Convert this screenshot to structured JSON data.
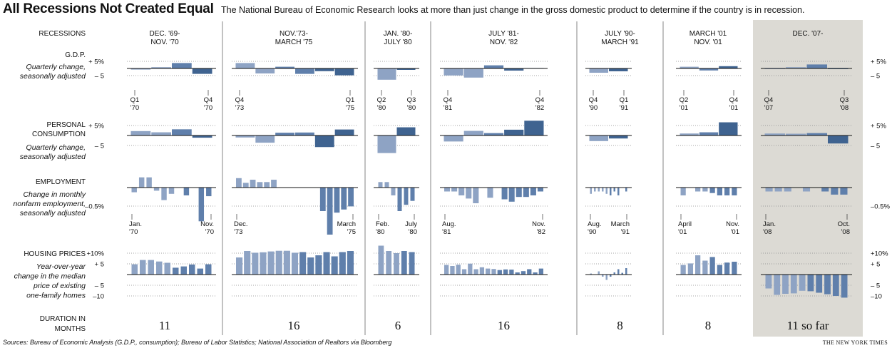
{
  "header": {
    "title": "All Recessions Not Created Equal",
    "subtitle": "The National Bureau of Economic Research looks at more than just change in the gross domestic product to determine if the country is in recession."
  },
  "row_labels": {
    "recessions": "RECESSIONS",
    "gdp_title": "G.D.P.",
    "gdp_desc": "Quarterly change, seasonally adjusted",
    "pc_title": "PERSONAL CONSUMPTION",
    "pc_desc": "Quarterly change, seasonally adjusted",
    "emp_title": "EMPLOYMENT",
    "emp_desc": "Change in monthly nonfarm employment, seasonally adjusted",
    "house_title": "HOUSING PRICES",
    "house_desc": "Year-over-year change in the median price of existing one-family homes",
    "dur_title": "DURATION IN MONTHS"
  },
  "footer": {
    "sources": "Sources: Bureau of Economic Analysis (G.D.P., consumption); Bureau of Labor Statistics; National Association of Realtors via Bloomberg",
    "credit": "THE NEW YORK TIMES"
  },
  "colors": {
    "light": "#8ea3c4",
    "mid": "#5f7fab",
    "dark": "#3f6390",
    "highlight_bg": "#dcdad4",
    "divider": "#666666"
  },
  "chart_data": [
    {
      "type": "bar",
      "name": "G.D.P.",
      "ylim": [
        -5,
        5
      ],
      "ytick_labels": {
        "left": [
          "+ 5%",
          "– 5"
        ],
        "right": [
          "+ 5%",
          "– 5"
        ]
      },
      "recessions": [
        {
          "label": "DEC. '69-\nNOV. '70",
          "duration": "11",
          "values": [
            -0.8,
            0.9,
            3.8,
            -3.8
          ],
          "start_label": "Q1\n'70",
          "end_label": "Q4\n'70"
        },
        {
          "label": "NOV.'73-\nMARCH '75",
          "duration": "16",
          "values": [
            3.8,
            -3.5,
            1.2,
            -3.8,
            -1.9,
            -4.8
          ],
          "start_label": "Q4\n'73",
          "end_label": "Q1\n'75"
        },
        {
          "label": "JAN. '80-\nJULY '80",
          "duration": "6",
          "values": [
            -7.9,
            -1.0
          ],
          "start_label": "Q2\n'80",
          "end_label": "Q3\n'80"
        },
        {
          "label": "JULY '81-\nNOV. '82",
          "duration": "16",
          "values": [
            -4.9,
            -6.4,
            2.2,
            -1.5,
            0.3
          ],
          "start_label": "Q4\n'81",
          "end_label": "Q4\n'82"
        },
        {
          "label": "JULY '90-\nMARCH '91",
          "duration": "8",
          "values": [
            -3.0,
            -2.0
          ],
          "start_label": "Q4\n'90",
          "end_label": "Q1\n'91"
        },
        {
          "label": "MARCH '01\nNOV. '01",
          "duration": "8",
          "values": [
            1.2,
            -1.4,
            1.6
          ],
          "start_label": "Q2\n'01",
          "end_label": "Q4\n'01"
        },
        {
          "label": "DEC. '07-",
          "duration": "11 so far",
          "values": [
            -0.2,
            0.9,
            2.8,
            -0.5
          ],
          "start_label": "Q4\n'07",
          "end_label": "Q3\n'08"
        }
      ]
    },
    {
      "type": "bar",
      "name": "PERSONAL CONSUMPTION",
      "ylim": [
        -5,
        5
      ],
      "ytick_labels": {
        "left": [
          "+ 5%",
          "– 5"
        ],
        "right": [
          "+ 5%",
          "– 5"
        ]
      },
      "recessions": [
        {
          "values": [
            2.2,
            1.6,
            3.1,
            -1.1
          ]
        },
        {
          "values": [
            -1.0,
            -3.6,
            1.4,
            1.5,
            -5.8,
            3.0
          ]
        },
        {
          "values": [
            -8.8,
            4.1
          ]
        },
        {
          "values": [
            -3.0,
            2.3,
            1.2,
            2.9,
            7.4
          ]
        },
        {
          "values": [
            -2.8,
            -1.5
          ]
        },
        {
          "values": [
            1.0,
            1.6,
            6.6
          ]
        },
        {
          "values": [
            1.0,
            0.9,
            1.2,
            -4.0
          ]
        }
      ]
    },
    {
      "type": "bar",
      "name": "EMPLOYMENT",
      "ylim": [
        -0.5,
        0.3
      ],
      "ytick_labels": {
        "right": [
          "–0.5%"
        ],
        "left": [
          "–0.5%"
        ]
      },
      "recessions": [
        {
          "values": [
            -0.06,
            0.13,
            0.13,
            -0.04,
            -0.16,
            -0.08,
            0,
            -0.1,
            0,
            -0.43,
            -0.11
          ],
          "start_label": "Jan.\n'70",
          "end_label": "Nov.\n'70"
        },
        {
          "values": [
            0.12,
            0.06,
            0.1,
            0.07,
            0.07,
            0.1,
            0,
            0,
            0,
            0,
            0,
            0,
            -0.3,
            -0.6,
            -0.32,
            -0.28,
            -0.24
          ],
          "start_label": "Dec.\n'73",
          "end_label": "March\n'75"
        },
        {
          "values": [
            0.07,
            0.07,
            -0.1,
            -0.3,
            -0.22,
            -0.17
          ],
          "start_label": "Feb.\n'80",
          "end_label": "July\n'80"
        },
        {
          "values": [
            -0.05,
            -0.05,
            -0.1,
            -0.14,
            -0.2,
            0,
            -0.13,
            0,
            -0.15,
            -0.18,
            -0.12,
            -0.12,
            -0.1,
            -0.05
          ],
          "start_label": "Aug.\n'81",
          "end_label": "Nov.\n'82"
        },
        {
          "values": [
            -0.08,
            -0.05,
            -0.05,
            -0.05,
            -0.08,
            -0.1,
            -0.05,
            -0.1,
            0,
            -0.05
          ],
          "start_label": "Aug.\n'90",
          "end_label": "March\n'91"
        },
        {
          "values": [
            -0.1,
            0,
            -0.05,
            -0.05,
            -0.07,
            -0.1,
            -0.1,
            -0.1
          ],
          "start_label": "April\n'01",
          "end_label": "Nov.\n'01"
        },
        {
          "values": [
            -0.05,
            -0.05,
            -0.05,
            0,
            -0.05,
            0,
            -0.05,
            -0.09,
            -0.09
          ],
          "start_label": "Jan.\n'08",
          "end_label": "Oct.\n'08"
        }
      ]
    },
    {
      "type": "bar",
      "name": "HOUSING PRICES",
      "ylim": [
        -10,
        10
      ],
      "ytick_labels": {
        "left": [
          "+10%",
          "+ 5",
          "– 5",
          "–10"
        ],
        "right": [
          "+10%",
          "+ 5",
          "– 5",
          "–10"
        ]
      },
      "recessions": [
        {
          "values": [
            4.8,
            6.8,
            6.8,
            6.1,
            5.5,
            3.2,
            3.8,
            4.7,
            2.8,
            4.8
          ]
        },
        {
          "values": [
            8.0,
            11.0,
            10.2,
            10.4,
            10.8,
            11.1,
            11.1,
            10.2,
            10.5,
            8.0,
            9.0,
            10.5,
            8.5,
            10.5,
            11.0
          ]
        },
        {
          "values": [
            13.5,
            11.0,
            10.0,
            11.0,
            10.5
          ]
        },
        {
          "values": [
            4.5,
            4.0,
            4.6,
            2.5,
            5.1,
            2.5,
            3.4,
            2.8,
            2.6,
            2.1,
            2.4,
            2.3,
            1.0,
            1.6,
            2.5,
            1.0,
            2.8
          ]
        },
        {
          "values": [
            0.5,
            0,
            1.5,
            -1.0,
            -2.5,
            -1.0,
            1.0,
            2.5,
            0.8,
            3.0
          ]
        },
        {
          "values": [
            4.5,
            5.2,
            9.0,
            6.5,
            8.2,
            4.5,
            5.6,
            6.0
          ]
        },
        {
          "values": [
            -6.5,
            -9.5,
            -9.0,
            -8.8,
            -7.6,
            -7.8,
            -8.5,
            -9.2,
            -10.0,
            -10.8
          ]
        }
      ]
    }
  ]
}
